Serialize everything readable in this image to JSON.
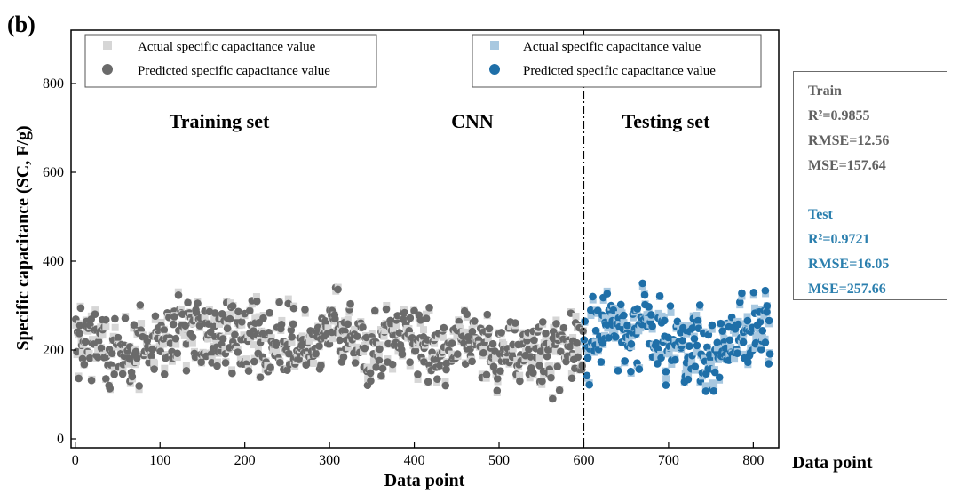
{
  "panel_label": "(b)",
  "colors": {
    "train_actual": "#d6d6d6",
    "train_pred": "#6a6a6a",
    "test_actual": "#a8c8e0",
    "test_pred": "#1f6fa8",
    "train_text": "#616161",
    "test_text": "#2b7fae"
  },
  "chart_data": {
    "type": "scatter",
    "title": "",
    "xlabel": "Data point",
    "ylabel": "Specific capacitance (SC, F/g)",
    "xlim": [
      -5,
      830
    ],
    "ylim": [
      -20,
      920
    ],
    "xticks": [
      0,
      100,
      200,
      300,
      400,
      500,
      600,
      700,
      800
    ],
    "yticks": [
      0,
      200,
      400,
      600,
      800
    ],
    "split_at": 600,
    "annotations": [
      "Training set",
      "CNN",
      "Testing set"
    ],
    "legend_left": {
      "position": "top-left",
      "entries": [
        "Actual specific capacitance value",
        "Predicted specific capacitance value"
      ]
    },
    "legend_right": {
      "position": "top-right",
      "entries": [
        "Actual specific capacitance value",
        "Predicted specific capacitance value"
      ]
    },
    "series": [
      {
        "name": "Training set - Actual specific capacitance value",
        "marker": "square",
        "x": [
          0,
          25,
          50,
          75,
          100,
          125,
          150,
          175,
          200,
          225,
          250,
          275,
          300,
          325,
          350,
          375,
          400,
          425,
          450,
          475,
          500,
          525,
          550,
          575,
          600
        ],
        "y": [
          230,
          215,
          190,
          205,
          220,
          240,
          225,
          215,
          245,
          230,
          210,
          200,
          250,
          225,
          205,
          240,
          215,
          200,
          235,
          220,
          195,
          210,
          185,
          215,
          205
        ]
      },
      {
        "name": "Training set - Predicted specific capacitance value",
        "marker": "circle",
        "x": [
          0,
          25,
          50,
          75,
          100,
          125,
          150,
          175,
          200,
          225,
          250,
          275,
          300,
          325,
          350,
          375,
          400,
          425,
          450,
          475,
          500,
          525,
          550,
          575,
          600
        ],
        "y": [
          225,
          210,
          195,
          210,
          215,
          235,
          220,
          220,
          240,
          225,
          205,
          205,
          245,
          220,
          210,
          235,
          220,
          205,
          230,
          215,
          200,
          205,
          190,
          210,
          200
        ]
      },
      {
        "name": "Testing set - Actual specific capacitance value",
        "marker": "square",
        "x": [
          600,
          625,
          650,
          675,
          700,
          725,
          750,
          775,
          800,
          820
        ],
        "y": [
          205,
          260,
          235,
          255,
          220,
          205,
          190,
          230,
          250,
          270
        ]
      },
      {
        "name": "Testing set - Predicted specific capacitance value",
        "marker": "circle",
        "x": [
          600,
          625,
          650,
          675,
          700,
          725,
          750,
          775,
          800,
          820
        ],
        "y": [
          200,
          255,
          240,
          250,
          215,
          210,
          185,
          225,
          245,
          265
        ]
      }
    ]
  },
  "metrics": {
    "train": {
      "label": "Train",
      "r2": "R²=0.9855",
      "rmse": "RMSE=12.56",
      "mse": "MSE=157.64"
    },
    "test": {
      "label": "Test",
      "r2": "R²=0.9721",
      "rmse": "RMSE=16.05",
      "mse": "MSE=257.66"
    }
  },
  "right_axis_label": "Data point"
}
